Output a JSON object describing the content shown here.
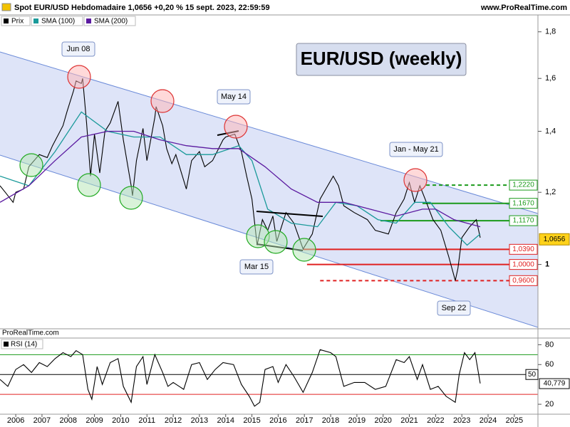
{
  "header": {
    "title": "Spot EUR/USD Hebdomadaire 1,0656 +0,20 % 15 sept. 2023, 22:59:59",
    "website": "www.ProRealTime.com"
  },
  "chart_data": [
    {
      "type": "line",
      "title": "EUR/USD (weekly)",
      "log_scale": true,
      "source": "ProRealTime.com",
      "xlim": [
        2005.4,
        2025.9
      ],
      "ylim": [
        0.85,
        1.875
      ],
      "yticks": [
        {
          "value": 1.8,
          "label": "1,8"
        },
        {
          "value": 1.6,
          "label": "1,6"
        },
        {
          "value": 1.4,
          "label": "1,4"
        },
        {
          "value": 1.2,
          "label": "1,2"
        },
        1
      ],
      "series": [
        {
          "name": "Prix",
          "color": "#000000",
          "x": [
            2005.4,
            2005.6,
            2005.9,
            2006.0,
            2006.3,
            2006.5,
            2006.9,
            2007.2,
            2007.4,
            2007.8,
            2007.95,
            2008.2,
            2008.3,
            2008.5,
            2008.55,
            2008.7,
            2008.85,
            2009.0,
            2009.2,
            2009.4,
            2009.6,
            2009.9,
            2010.1,
            2010.4,
            2010.45,
            2010.6,
            2010.85,
            2011.0,
            2011.3,
            2011.35,
            2011.6,
            2011.75,
            2011.95,
            2012.1,
            2012.5,
            2012.7,
            2013.0,
            2013.2,
            2013.5,
            2013.9,
            2014.0,
            2014.35,
            2014.6,
            2014.8,
            2015.0,
            2015.2,
            2015.4,
            2015.6,
            2015.8,
            2015.95,
            2016.3,
            2016.6,
            2016.95,
            2017.3,
            2017.6,
            2018.1,
            2018.3,
            2018.5,
            2018.9,
            2019.4,
            2019.7,
            2020.2,
            2020.5,
            2020.8,
            2021.0,
            2021.2,
            2021.4,
            2021.6,
            2021.9,
            2022.2,
            2022.5,
            2022.75,
            2022.85,
            2023.0,
            2023.3,
            2023.55,
            2023.7
          ],
          "values": [
            1.22,
            1.2,
            1.17,
            1.2,
            1.21,
            1.28,
            1.32,
            1.31,
            1.35,
            1.42,
            1.47,
            1.55,
            1.59,
            1.58,
            1.6,
            1.43,
            1.25,
            1.39,
            1.26,
            1.4,
            1.43,
            1.51,
            1.37,
            1.22,
            1.19,
            1.3,
            1.41,
            1.3,
            1.45,
            1.49,
            1.42,
            1.34,
            1.29,
            1.32,
            1.21,
            1.3,
            1.33,
            1.28,
            1.3,
            1.37,
            1.38,
            1.39,
            1.33,
            1.25,
            1.18,
            1.05,
            1.12,
            1.09,
            1.13,
            1.06,
            1.14,
            1.11,
            1.04,
            1.08,
            1.18,
            1.25,
            1.22,
            1.16,
            1.14,
            1.12,
            1.09,
            1.08,
            1.14,
            1.18,
            1.23,
            1.17,
            1.22,
            1.18,
            1.12,
            1.09,
            1.02,
            0.96,
            0.99,
            1.07,
            1.1,
            1.12,
            1.07
          ]
        },
        {
          "name": "SMA (100)",
          "color": "#1a9a9a",
          "x": [
            2005.4,
            2006.5,
            2007.5,
            2008.5,
            2009.5,
            2010.5,
            2011.5,
            2012.5,
            2013.5,
            2014.5,
            2015.0,
            2015.6,
            2016.5,
            2017.5,
            2018.2,
            2019.0,
            2019.8,
            2020.5,
            2021.2,
            2021.8,
            2022.5,
            2023.2,
            2023.7
          ],
          "values": [
            1.25,
            1.22,
            1.33,
            1.47,
            1.4,
            1.38,
            1.38,
            1.32,
            1.32,
            1.35,
            1.3,
            1.15,
            1.11,
            1.1,
            1.17,
            1.16,
            1.12,
            1.11,
            1.17,
            1.17,
            1.1,
            1.05,
            1.08
          ]
        },
        {
          "name": "SMA (200)",
          "color": "#5b1aa0",
          "x": [
            2005.4,
            2006.5,
            2007.5,
            2008.5,
            2009.5,
            2010.5,
            2011.5,
            2012.5,
            2013.5,
            2014.5,
            2015.5,
            2016.5,
            2017.5,
            2018.5,
            2019.5,
            2020.5,
            2021.5,
            2022.0,
            2022.7,
            2023.7
          ],
          "values": [
            1.17,
            1.22,
            1.3,
            1.38,
            1.4,
            1.4,
            1.37,
            1.35,
            1.34,
            1.34,
            1.28,
            1.21,
            1.17,
            1.17,
            1.15,
            1.13,
            1.15,
            1.15,
            1.12,
            1.1
          ]
        }
      ],
      "levels": [
        {
          "value": 1.222,
          "label": "1,2220",
          "color": "#1a9a1a",
          "dashed": true,
          "x0": 2021.64
        },
        {
          "value": 1.167,
          "label": "1,1670",
          "color": "#1a9a1a",
          "dashed": false,
          "x0": 2021.5
        },
        {
          "value": 1.117,
          "label": "1,1170",
          "color": "#1a9a1a",
          "dashed": false,
          "x0": 2019.9
        },
        {
          "value": 1.039,
          "label": "1,0390",
          "color": "#e02020",
          "dashed": false,
          "x0": 2016.95
        },
        {
          "value": 1.0,
          "label": "1,0000",
          "color": "#e02020",
          "dashed": false,
          "x0": 2017.1
        },
        {
          "value": 0.96,
          "label": "0,9600",
          "color": "#e02020",
          "dashed": true,
          "x0": 2017.6
        }
      ],
      "last": {
        "value": 1.0656,
        "label": "1,0656"
      },
      "annotations": [
        "Jun 08",
        "May 14",
        "Jan - May 21",
        "Mar 15",
        "Sep 22"
      ]
    },
    {
      "type": "line",
      "title": "RSI (14)",
      "xlim": [
        2005.4,
        2025.9
      ],
      "ylim": [
        10,
        86
      ],
      "xticks": [
        2006,
        2007,
        2008,
        2009,
        2010,
        2011,
        2012,
        2013,
        2014,
        2015,
        2016,
        2017,
        2018,
        2019,
        2020,
        2021,
        2022,
        2023,
        2024,
        2025
      ],
      "yticks": [
        20,
        60,
        80
      ],
      "bands": [
        {
          "value": 70,
          "color": "#1a9a1a"
        },
        {
          "value": 30,
          "color": "#e02020"
        }
      ],
      "mid": 50,
      "last": {
        "value": 40.779,
        "label": "40,779"
      },
      "series": [
        {
          "name": "RSI (14)",
          "color": "#000000",
          "x": [
            2005.4,
            2005.7,
            2006.0,
            2006.3,
            2006.6,
            2006.9,
            2007.2,
            2007.5,
            2007.8,
            2008.1,
            2008.3,
            2008.55,
            2008.75,
            2008.9,
            2009.1,
            2009.3,
            2009.6,
            2009.9,
            2010.1,
            2010.4,
            2010.6,
            2010.85,
            2011.0,
            2011.3,
            2011.6,
            2011.8,
            2012.0,
            2012.4,
            2012.7,
            2013.0,
            2013.3,
            2013.6,
            2013.9,
            2014.3,
            2014.6,
            2014.9,
            2015.1,
            2015.3,
            2015.5,
            2015.8,
            2016.0,
            2016.3,
            2016.6,
            2016.95,
            2017.3,
            2017.6,
            2018.0,
            2018.2,
            2018.5,
            2018.9,
            2019.3,
            2019.7,
            2020.1,
            2020.5,
            2020.8,
            2021.0,
            2021.3,
            2021.5,
            2021.8,
            2022.1,
            2022.4,
            2022.75,
            2022.9,
            2023.1,
            2023.3,
            2023.5,
            2023.7
          ],
          "values": [
            45,
            38,
            55,
            60,
            52,
            62,
            58,
            66,
            72,
            68,
            74,
            70,
            35,
            25,
            58,
            40,
            62,
            66,
            38,
            22,
            58,
            68,
            40,
            70,
            52,
            38,
            42,
            35,
            60,
            62,
            45,
            55,
            62,
            60,
            40,
            28,
            18,
            22,
            55,
            58,
            42,
            60,
            48,
            32,
            52,
            75,
            72,
            68,
            38,
            42,
            42,
            35,
            38,
            65,
            62,
            68,
            45,
            60,
            35,
            38,
            28,
            22,
            50,
            72,
            65,
            72,
            41
          ]
        }
      ]
    }
  ]
}
